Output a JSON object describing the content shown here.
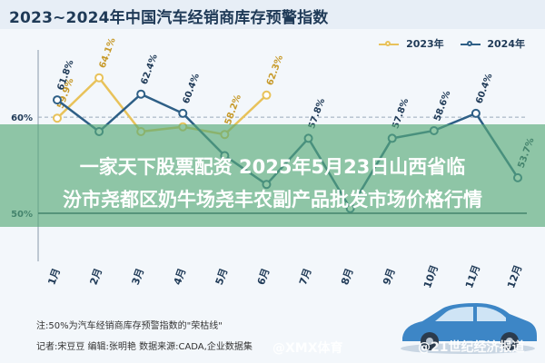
{
  "title": "2023~2024年中国汽车经销商库存预警指数",
  "legend": [
    {
      "name": "2023年",
      "color": "#e8c25a"
    },
    {
      "name": "2024年",
      "color": "#2e5f86"
    }
  ],
  "overlay": {
    "line1": "一家天下股票配资 2025年5月23日山西省临",
    "line2": "汾市尧都区奶牛场尧丰农副产品批发市场价格行情"
  },
  "note": "注:50%为汽车经销商库存预警指数的\"荣枯线\"",
  "author_line": "记者:宋豆豆   编辑:张明艳   数据来源:CADA,企业数据集",
  "watermark1": "@XMX体育",
  "watermark2": "@21世纪经济报道",
  "chart_data": {
    "type": "line",
    "title": "2023~2024年中国汽车经销商库存预警指数",
    "categories": [
      "1月",
      "2月",
      "3月",
      "4月",
      "5月",
      "6月",
      "7月",
      "8月",
      "9月",
      "10月",
      "11月",
      "12月"
    ],
    "series": [
      {
        "name": "2023年",
        "color": "#e8c25a",
        "values": [
          59.9,
          64.1,
          58.5,
          59.0,
          58.2,
          62.3,
          null,
          null,
          null,
          null,
          null,
          null
        ]
      },
      {
        "name": "2024年",
        "color": "#2e5f86",
        "values": [
          61.8,
          58.5,
          62.4,
          60.4,
          56.0,
          53.0,
          57.8,
          50.5,
          57.8,
          58.6,
          60.4,
          53.7
        ]
      }
    ],
    "labels_2023": [
      "59.9%",
      "64.1%",
      "",
      "",
      "58.2%",
      "62.3%",
      "",
      "",
      "",
      "",
      "",
      ""
    ],
    "labels_2024": [
      "61.8%",
      "",
      "62.4%",
      "60.4%",
      "",
      "",
      "57.8%",
      "",
      "57.8%",
      "58.6%",
      "60.4%",
      "53.7%"
    ],
    "ytick_labels": [
      "60%",
      "50%"
    ],
    "yticks": [
      60,
      50
    ],
    "ylim": [
      45,
      67
    ],
    "grid": true,
    "legend_position": "top-right"
  }
}
